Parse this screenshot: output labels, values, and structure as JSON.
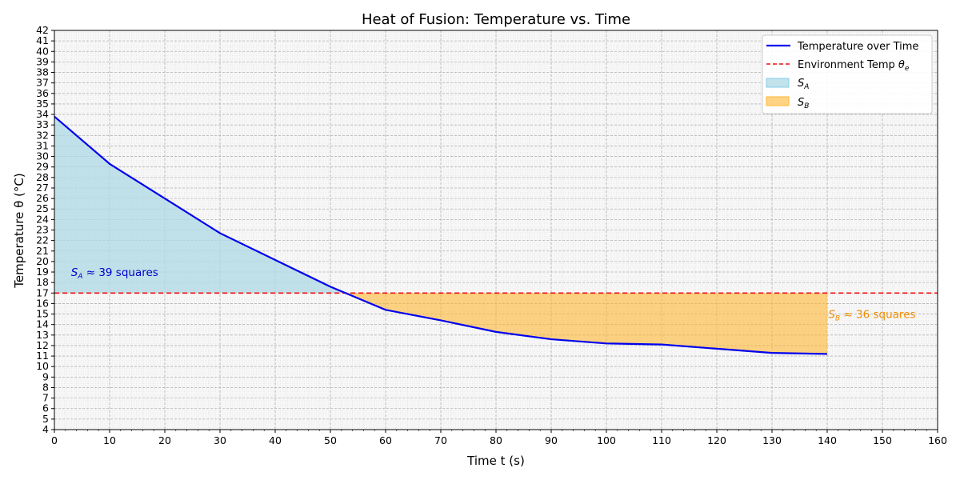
{
  "chart_data": {
    "type": "line",
    "title": "Heat of Fusion: Temperature vs. Time",
    "xlabel": "Time t (s)",
    "ylabel": "Temperature θ (°C)",
    "xlim": [
      0,
      160
    ],
    "ylim": [
      4,
      42
    ],
    "x_ticks": [
      0,
      10,
      20,
      30,
      40,
      50,
      60,
      70,
      80,
      90,
      100,
      110,
      120,
      130,
      140,
      150,
      160
    ],
    "y_ticks": [
      4,
      5,
      6,
      7,
      8,
      9,
      10,
      11,
      12,
      13,
      14,
      15,
      16,
      17,
      18,
      19,
      20,
      21,
      22,
      23,
      24,
      25,
      26,
      27,
      28,
      29,
      30,
      31,
      32,
      33,
      34,
      35,
      36,
      37,
      38,
      39,
      40,
      41,
      42
    ],
    "grid": true,
    "legend_position": "top-right",
    "series": [
      {
        "name": "Temperature over Time",
        "color": "#0000ee",
        "x": [
          0,
          10,
          30,
          50,
          60,
          70,
          80,
          90,
          100,
          110,
          120,
          130,
          140
        ],
        "y": [
          33.8,
          29.3,
          22.7,
          17.6,
          15.4,
          14.4,
          13.3,
          12.6,
          12.2,
          12.1,
          11.7,
          11.3,
          11.2
        ]
      }
    ],
    "environment_temp": {
      "name": "Environment Temp θe",
      "value": 17,
      "color": "#ee1111"
    },
    "areas": [
      {
        "name": "S_A",
        "color": "#add8e6",
        "x_range": [
          0,
          52.7
        ]
      },
      {
        "name": "S_B",
        "color": "#ffb732",
        "x_range": [
          52.7,
          140
        ]
      }
    ],
    "annotations": [
      {
        "text": "S_A ≈  39 squares",
        "x": 3,
        "y": 19,
        "color": "#0000cc"
      },
      {
        "text": "S_B ≈  36 squares",
        "x": 140.2,
        "y": 15,
        "color": "#f08c00"
      }
    ]
  }
}
